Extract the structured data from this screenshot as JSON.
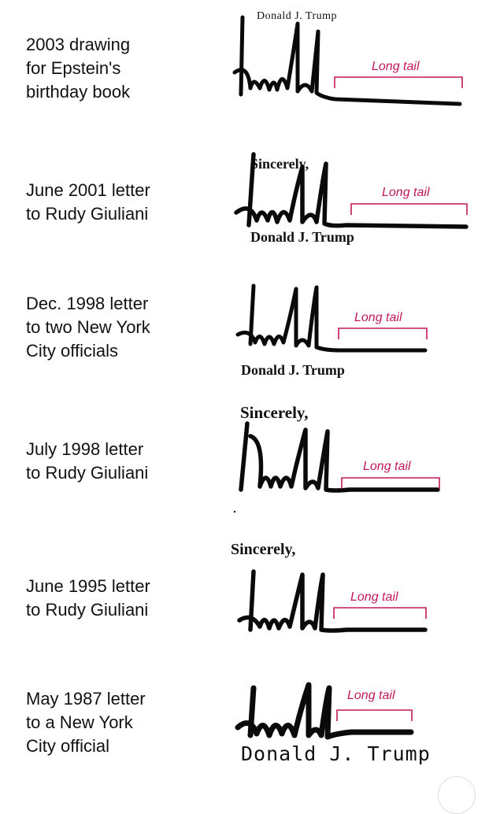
{
  "rows": [
    {
      "caption_lines": [
        "2003 drawing",
        "for Epstein's",
        "birthday book"
      ],
      "signature_print": "Donald J. Trump",
      "tail_label": "Long tail"
    },
    {
      "caption_lines": [
        "June 2001 letter",
        "to Rudy Giuliani"
      ],
      "signature_top": "Sincerely,",
      "signature_print": "Donald J. Trump",
      "tail_label": "Long tail"
    },
    {
      "caption_lines": [
        "Dec. 1998 letter",
        "to two New York",
        "City officials"
      ],
      "signature_print": "Donald J. Trump",
      "tail_label": "Long tail"
    },
    {
      "caption_lines": [
        "July 1998 letter",
        "to Rudy Giuliani"
      ],
      "signature_top": "Sincerely,",
      "tail_label": "Long tail"
    },
    {
      "caption_lines": [
        "June 1995 letter",
        "to Rudy Giuliani"
      ],
      "signature_top": "Sincerely,",
      "tail_label": "Long tail"
    },
    {
      "caption_lines": [
        "May 1987 letter",
        "to a New York",
        "City official"
      ],
      "signature_print": "Donald J. Trump",
      "tail_label": "Long tail"
    }
  ],
  "colors": {
    "annotation": "#c2185b",
    "ink": "#0a0a0a",
    "text": "#111111"
  }
}
